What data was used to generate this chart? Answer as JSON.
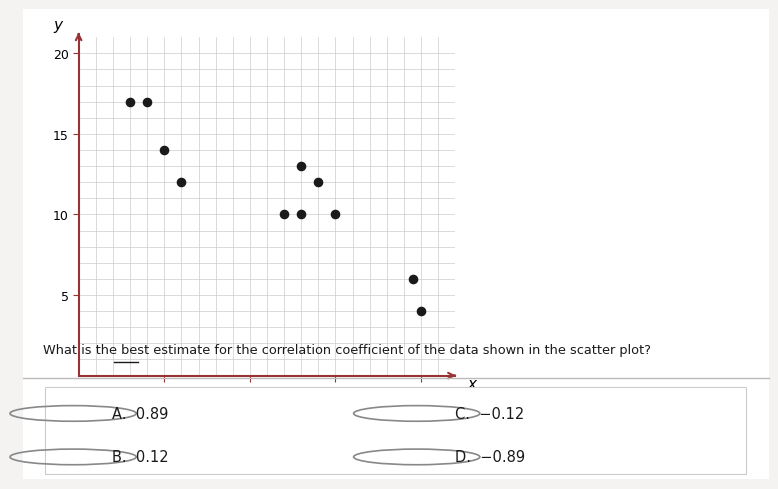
{
  "x_data": [
    0.3,
    0.4,
    0.5,
    0.6,
    1.2,
    1.3,
    1.3,
    1.4,
    1.5,
    1.95,
    2.0
  ],
  "y_data": [
    17,
    17,
    14,
    12,
    10,
    13,
    10,
    12,
    10,
    6,
    4
  ],
  "xlim": [
    0,
    2.2
  ],
  "ylim": [
    0,
    21
  ],
  "xticks": [
    0.5,
    1,
    1.5,
    2
  ],
  "yticks": [
    5,
    10,
    15,
    20
  ],
  "xlabel": "x",
  "ylabel": "y",
  "scatter_color": "#1a1a1a",
  "scatter_size": 35,
  "grid_color": "#cccccc",
  "axis_color": "#993333",
  "bg_color": "#ffffff",
  "right_bg_color": "#f5f2f2",
  "question_text": "What is the best estimate for the correlation coefficient of the data shown in the scatter plot?",
  "options": [
    {
      "label": "A.",
      "value": "0.89",
      "col": 0
    },
    {
      "label": "B.",
      "value": "0.12",
      "col": 0
    },
    {
      "label": "C.",
      "value": "−0.12",
      "col": 1
    },
    {
      "label": "D.",
      "value": "−0.89",
      "col": 1
    }
  ],
  "fig_bg": "#f5f2f2",
  "panel_bg": "#ffffff"
}
